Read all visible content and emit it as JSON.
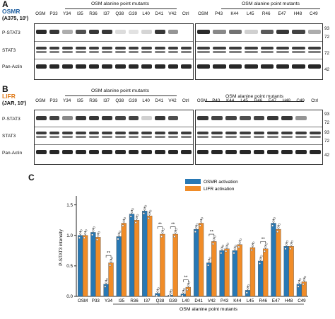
{
  "panel_a": {
    "letter": "A",
    "receptor_line1": "OSMR",
    "receptor_line2": "(A375, 10')",
    "left_lanes": [
      "OSM",
      "P33",
      "Y34",
      "I35",
      "R36",
      "I37",
      "Q38",
      "G39",
      "L40",
      "D41",
      "V42",
      "Ctrl"
    ],
    "right_lanes": [
      "OSM",
      "P43",
      "K44",
      "L45",
      "R46",
      "E47",
      "H48",
      "C49"
    ],
    "title_left": "OSM alanine point mutants",
    "title_right": "OSM alanine point mutants",
    "rows": [
      "P-STAT3",
      "STAT3",
      "Pan-Actin"
    ],
    "mw": [
      "93",
      "72",
      "72",
      "42"
    ],
    "pstat_left": [
      0.9,
      0.85,
      0.35,
      0.75,
      0.85,
      0.85,
      0.15,
      0.12,
      0.18,
      0.85,
      0.45,
      0.0
    ],
    "pstat_right": [
      0.9,
      0.5,
      0.6,
      0.2,
      0.7,
      0.85,
      0.8,
      0.35
    ]
  },
  "panel_b": {
    "letter": "B",
    "receptor_line1": "LIFR",
    "receptor_line2": "(JAR, 10')",
    "left_lanes": [
      "OSM",
      "P33",
      "Y34",
      "I35",
      "R36",
      "I37",
      "Q38",
      "G39",
      "L40",
      "D41",
      "V42",
      "Ctrl"
    ],
    "right_lanes": [
      "OSM",
      "P43",
      "K44",
      "L45",
      "R46",
      "E47",
      "H48",
      "C49",
      "Ctrl"
    ],
    "title_left": "OSM alanine point mutants",
    "title_right": "OSM alanine point mutants",
    "rows": [
      "P-STAT3",
      "STAT3",
      "Pan-Actin"
    ],
    "mw": [
      "93",
      "72",
      "93",
      "72",
      "42"
    ],
    "pstat_left": [
      0.85,
      0.8,
      0.5,
      0.85,
      0.85,
      0.85,
      0.8,
      0.8,
      0.2,
      0.85,
      0.75,
      0.0
    ],
    "pstat_right": [
      0.85,
      0.8,
      0.8,
      0.75,
      0.8,
      0.85,
      0.85,
      0.45,
      0.0
    ]
  },
  "panel_c": {
    "letter": "C",
    "chart_data": {
      "type": "bar",
      "ylabel": "P-STAT3 intensity",
      "xlabel": "OSM alanine point mutants",
      "ylim": [
        0,
        1.6
      ],
      "yticks": [
        "0.0",
        "0.5",
        "1.0",
        "1.5"
      ],
      "categories": [
        "OSM",
        "P33",
        "Y34",
        "I35",
        "R36",
        "I37",
        "Q38",
        "G39",
        "L40",
        "D41",
        "V42",
        "P43",
        "K44",
        "L45",
        "R46",
        "E47",
        "H48",
        "C49"
      ],
      "series": [
        {
          "name": "OSMR activation",
          "color": "#2878b4",
          "values": [
            1.0,
            1.05,
            0.2,
            0.98,
            1.35,
            1.4,
            0.05,
            0.02,
            0.04,
            1.1,
            0.55,
            0.75,
            0.75,
            0.1,
            0.58,
            1.2,
            0.82,
            0.2
          ]
        },
        {
          "name": "LIFR activation",
          "color": "#f08c28",
          "values": [
            1.0,
            0.97,
            0.55,
            1.2,
            1.25,
            1.32,
            1.02,
            1.02,
            0.15,
            1.2,
            0.9,
            0.78,
            0.85,
            0.8,
            0.78,
            1.1,
            0.82,
            0.24
          ]
        }
      ],
      "significance": [
        {
          "category": "Y34",
          "label": "**"
        },
        {
          "category": "Q38",
          "label": "**"
        },
        {
          "category": "G39",
          "label": "**"
        },
        {
          "category": "L40",
          "label": "**"
        },
        {
          "category": "V42",
          "label": "**"
        },
        {
          "category": "R46",
          "label": "**"
        }
      ],
      "legend_placement": "top-center"
    }
  }
}
